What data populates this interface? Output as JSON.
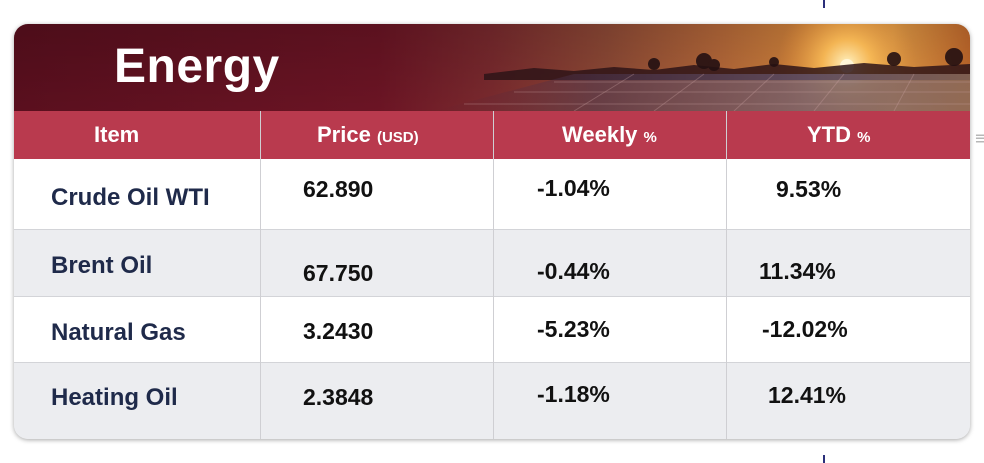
{
  "title": "Energy",
  "columns": {
    "item": "Item",
    "price": "Price",
    "price_unit": "(USD)",
    "weekly": "Weekly",
    "weekly_unit": "%",
    "ytd": "YTD",
    "ytd_unit": "%"
  },
  "rows": [
    {
      "item": "Crude Oil WTI",
      "price": "62.890",
      "weekly": "-1.04%",
      "ytd": "9.53%"
    },
    {
      "item": "Brent Oil",
      "price": "67.750",
      "weekly": "-0.44%",
      "ytd": "11.34%"
    },
    {
      "item": "Natural Gas",
      "price": "3.2430",
      "weekly": "-5.23%",
      "ytd": "-12.02%"
    },
    {
      "item": "Heating Oil",
      "price": "2.3848",
      "weekly": "-1.18%",
      "ytd": "12.41%"
    }
  ],
  "colors": {
    "banner": "#5a0f1e",
    "header": "#b93a4e",
    "item_text": "#1f2a4a",
    "sun": "#ffd27a"
  },
  "icons": {
    "banner_image": "solar-panel-sunset-image"
  }
}
